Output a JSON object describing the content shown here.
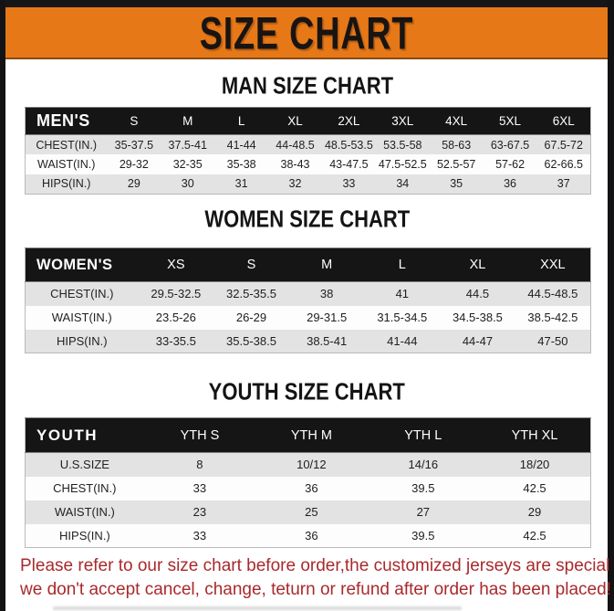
{
  "banner": {
    "title": "SIZE CHART"
  },
  "sections": [
    {
      "title": "MAN SIZE CHART",
      "header": [
        "MEN'S",
        "S",
        "M",
        "L",
        "XL",
        "2XL",
        "3XL",
        "4XL",
        "5XL",
        "6XL"
      ],
      "rows": [
        {
          "label": "CHEST(IN.)",
          "values": [
            "35-37.5",
            "37.5-41",
            "41-44",
            "44-48.5",
            "48.5-53.5",
            "53.5-58",
            "58-63",
            "63-67.5",
            "67.5-72"
          ]
        },
        {
          "label": "WAIST(IN.)",
          "values": [
            "29-32",
            "32-35",
            "35-38",
            "38-43",
            "43-47.5",
            "47.5-52.5",
            "52.5-57",
            "57-62",
            "62-66.5"
          ]
        },
        {
          "label": "HIPS(IN.)",
          "values": [
            "29",
            "30",
            "31",
            "32",
            "33",
            "34",
            "35",
            "36",
            "37"
          ]
        }
      ]
    },
    {
      "title": "WOMEN SIZE CHART",
      "header": [
        "WOMEN'S",
        "XS",
        "S",
        "M",
        "L",
        "XL",
        "XXL"
      ],
      "rows": [
        {
          "label": "CHEST(IN.)",
          "values": [
            "29.5-32.5",
            "32.5-35.5",
            "38",
            "41",
            "44.5",
            "44.5-48.5"
          ]
        },
        {
          "label": "WAIST(IN.)",
          "values": [
            "23.5-26",
            "26-29",
            "29-31.5",
            "31.5-34.5",
            "34.5-38.5",
            "38.5-42.5"
          ]
        },
        {
          "label": "HIPS(IN.)",
          "values": [
            "33-35.5",
            "35.5-38.5",
            "38.5-41",
            "41-44",
            "44-47",
            "47-50"
          ]
        }
      ]
    },
    {
      "title": "YOUTH SIZE CHART",
      "header": [
        "YOUTH",
        "YTH S",
        "YTH M",
        "YTH L",
        "YTH XL"
      ],
      "rows": [
        {
          "label": "U.S.SIZE",
          "values": [
            "8",
            "10/12",
            "14/16",
            "18/20"
          ]
        },
        {
          "label": "CHEST(IN.)",
          "values": [
            "33",
            "36",
            "39.5",
            "42.5"
          ]
        },
        {
          "label": "WAIST(IN.)",
          "values": [
            "23",
            "25",
            "27",
            "29"
          ]
        },
        {
          "label": "HIPS(IN.)",
          "values": [
            "33",
            "36",
            "39.5",
            "42.5"
          ]
        }
      ]
    }
  ],
  "footer": {
    "line1": "Please refer to our size chart before order,the customized jerseys are special products,",
    "line2": "we don't accept cancel, change, teturn or refund after order has been placed!"
  },
  "colors": {
    "banner_orange": "#e67818",
    "frame_black": "#161618",
    "table_header_black": "#151515",
    "row_gray": "#e3e3e3",
    "footer_red": "#a9292c"
  }
}
